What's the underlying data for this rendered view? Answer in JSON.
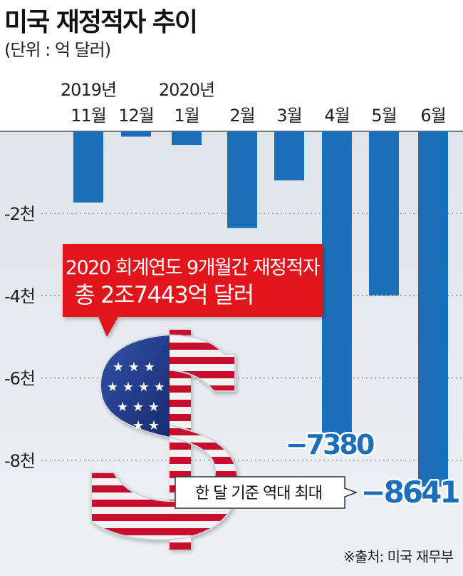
{
  "header": {
    "title": "미국 재정적자 추이",
    "unit": "(단위 : 억 달러)"
  },
  "chart_data": {
    "type": "bar",
    "categories": [
      "11월",
      "12월",
      "1월",
      "2월",
      "3월",
      "4월",
      "5월",
      "6월"
    ],
    "year_labels": [
      "2019년",
      "",
      "2020년",
      "",
      "",
      "",
      "",
      ""
    ],
    "values": [
      -1730,
      -130,
      -330,
      -2350,
      -1190,
      -7380,
      -3990,
      -8641
    ],
    "ylim": [
      -9800,
      0
    ],
    "yticks": [
      -2000,
      -4000,
      -6000,
      -8000
    ],
    "ytick_labels": [
      "-2천",
      "-4천",
      "-6천",
      "-8천"
    ],
    "grid": true,
    "bar_color": "#1c6fb7",
    "value_labels": [
      "",
      "",
      "",
      "",
      "",
      "−7380",
      "",
      "−8641"
    ],
    "annotations": {
      "total_callout": [
        "2020 회계연도 9개월간 재정적자",
        "총 2조7443억 달러"
      ],
      "record_callout": "한 달 기준 역대 최대"
    }
  },
  "source": "※출처: 미국 재무부",
  "colors": {
    "plot_bg": "#dde3e9",
    "callout_red": "#e0141e",
    "flag_red": "#c8102e",
    "flag_blue": "#1f3a8a"
  }
}
